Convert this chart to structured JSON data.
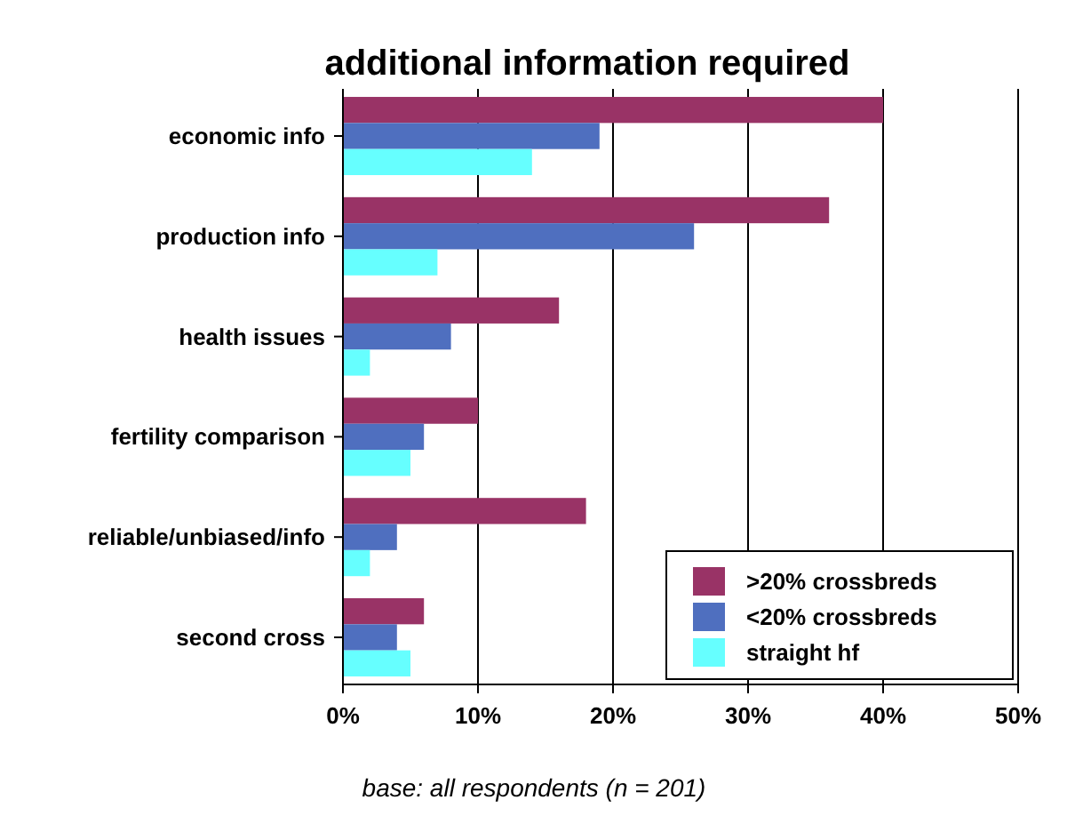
{
  "chart_data": {
    "type": "bar",
    "orientation": "horizontal",
    "title": "additional information required",
    "categories": [
      "economic info",
      "production info",
      "health issues",
      "fertility comparison",
      "reliable/unbiased/info",
      "second cross"
    ],
    "series": [
      {
        "name": ">20% crossbreds",
        "color": "#993366",
        "values": [
          40,
          36,
          16,
          10,
          18,
          6
        ]
      },
      {
        "name": "<20% crossbreds",
        "color": "#4f6fbf",
        "values": [
          19,
          26,
          8,
          6,
          4,
          4
        ]
      },
      {
        "name": "straight hf",
        "color": "#66ffff",
        "values": [
          14,
          7,
          2,
          5,
          2,
          5
        ]
      }
    ],
    "xlim": [
      0,
      50
    ],
    "xticks": [
      {
        "value": 0,
        "label": "0%"
      },
      {
        "value": 10,
        "label": "10%"
      },
      {
        "value": 20,
        "label": "20%"
      },
      {
        "value": 30,
        "label": "30%"
      },
      {
        "value": 40,
        "label": "40%"
      },
      {
        "value": 50,
        "label": "50%"
      }
    ],
    "grid": "x",
    "legend": "bottom right",
    "annotations": [
      "base: all respondents (n = 201)"
    ]
  }
}
